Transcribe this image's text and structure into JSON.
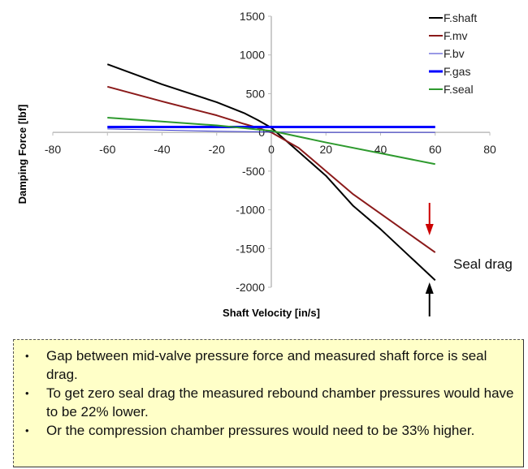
{
  "chart_data": {
    "type": "line",
    "title": "",
    "xlabel": "Shaft Velocity [in/s]",
    "ylabel": "Damping Force [lbf]",
    "xlim": [
      -80,
      80
    ],
    "ylim": [
      -2000,
      1500
    ],
    "xticks": [
      -80,
      -60,
      -40,
      -20,
      0,
      20,
      40,
      60,
      80
    ],
    "yticks": [
      1500,
      1000,
      500,
      0,
      -500,
      -1000,
      -1500,
      -2000
    ],
    "grid": false,
    "legend_position": "top-right",
    "series": [
      {
        "name": "F.shaft",
        "color": "#000000",
        "width": 2,
        "x": [
          -60,
          -40,
          -20,
          -10,
          -5,
          0,
          10,
          20,
          30,
          40,
          50,
          60
        ],
        "y": [
          880,
          620,
          390,
          250,
          160,
          60,
          -250,
          -560,
          -950,
          -1250,
          -1580,
          -1910
        ]
      },
      {
        "name": "F.mv",
        "color": "#8b1a1a",
        "width": 2,
        "x": [
          -60,
          -40,
          -20,
          -10,
          -5,
          0,
          10,
          20,
          30,
          40,
          50,
          60
        ],
        "y": [
          590,
          400,
          220,
          110,
          60,
          0,
          -200,
          -500,
          -800,
          -1050,
          -1300,
          -1550
        ]
      },
      {
        "name": "F.bv",
        "color": "#3333cc",
        "width": 1,
        "x": [
          -60,
          -40,
          -20,
          0,
          20,
          40,
          60
        ],
        "y": [
          45,
          30,
          15,
          5,
          0,
          0,
          0
        ]
      },
      {
        "name": "F.gas",
        "color": "#0000ff",
        "width": 3,
        "x": [
          -60,
          -20,
          0,
          20,
          60
        ],
        "y": [
          70,
          70,
          70,
          70,
          70
        ]
      },
      {
        "name": "F.seal",
        "color": "#2e9a2e",
        "width": 2,
        "x": [
          -60,
          -40,
          -20,
          0,
          20,
          40,
          60
        ],
        "y": [
          190,
          140,
          90,
          20,
          -130,
          -270,
          -410
        ]
      }
    ],
    "annotations": [
      {
        "text": "Seal drag",
        "arrows": [
          {
            "color": "#cc0000",
            "direction": "down",
            "x": 60
          },
          {
            "color": "#000000",
            "direction": "up",
            "x": 60
          }
        ]
      }
    ]
  },
  "notes": [
    "Gap between mid-valve pressure force and measured shaft force is seal drag.",
    "To get zero seal drag the measured rebound chamber pressures would have to be 22% lower.",
    "Or the compression chamber pressures would need to be 33% higher."
  ]
}
